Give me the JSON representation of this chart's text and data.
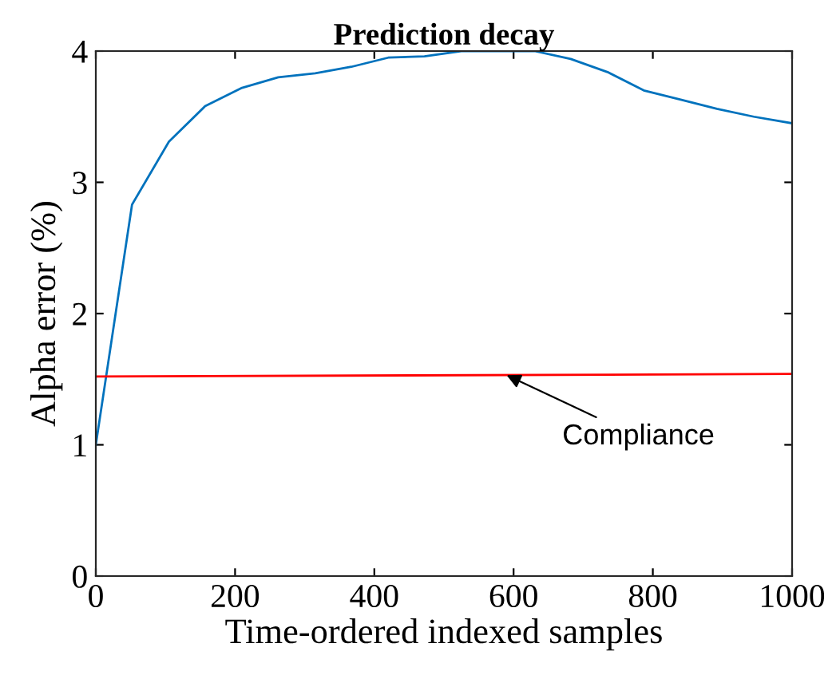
{
  "chart_data": {
    "type": "line",
    "title": "Prediction decay",
    "xlabel": "Time-ordered indexed samples",
    "ylabel": "Alpha error (%)",
    "xlim": [
      0,
      1000
    ],
    "xticks": [
      0,
      200,
      400,
      600,
      800,
      1000
    ],
    "ylim": [
      0,
      4
    ],
    "yticks": [
      0,
      1,
      2,
      3,
      4
    ],
    "grid": false,
    "series": [
      {
        "color": "#0072bd",
        "x": [
          0,
          52,
          105,
          157,
          210,
          262,
          315,
          367,
          420,
          472,
          525,
          577,
          630,
          682,
          735,
          787,
          840,
          892,
          945,
          1000
        ],
        "values": [
          1.0,
          2.83,
          3.31,
          3.58,
          3.72,
          3.8,
          3.83,
          3.88,
          3.95,
          3.96,
          4.0,
          4.0,
          4.0,
          3.94,
          3.84,
          3.7,
          3.63,
          3.56,
          3.5,
          3.45
        ]
      },
      {
        "color": "#ff0000",
        "x": [
          0,
          1000
        ],
        "values": [
          1.52,
          1.54
        ]
      }
    ],
    "annotations": [
      {
        "text": "Compliance",
        "x": 590,
        "y": 1.53
      }
    ]
  }
}
